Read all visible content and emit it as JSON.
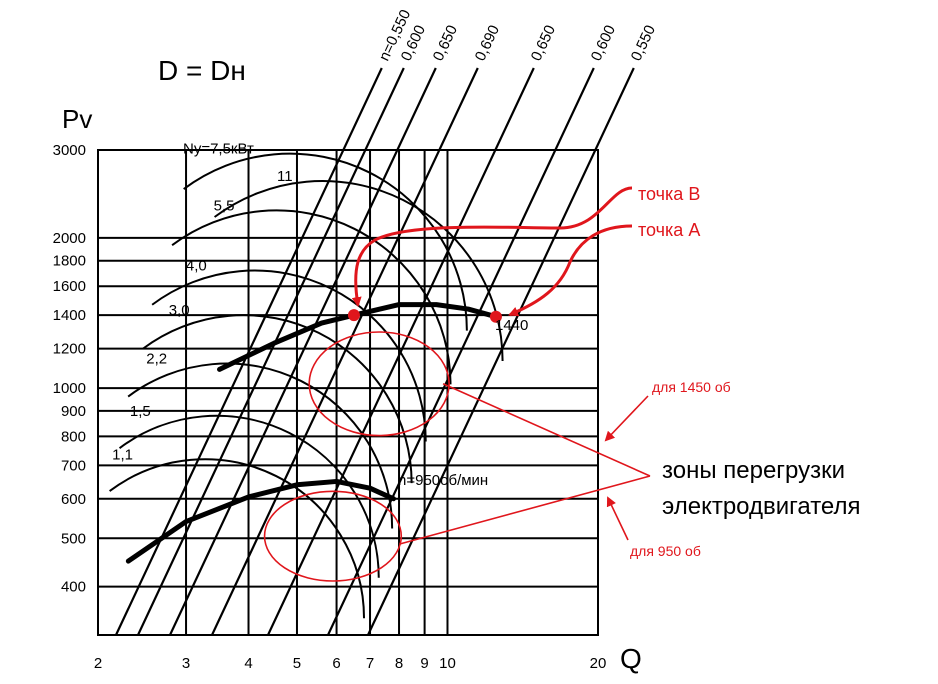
{
  "chart_data": {
    "type": "line",
    "title": "D = Dн",
    "xlabel": "Q",
    "ylabel": "Pv",
    "x_scale": "log",
    "y_scale": "log",
    "xlim": [
      2,
      20
    ],
    "ylim": [
      320,
      3000
    ],
    "x_ticks": [
      2,
      3,
      4,
      5,
      6,
      7,
      8,
      9,
      10,
      20
    ],
    "y_ticks": [
      400,
      500,
      600,
      700,
      800,
      900,
      1000,
      1200,
      1400,
      1600,
      1800,
      2000,
      3000
    ],
    "efficiency_labels": [
      "n=0,550",
      "0,600",
      "0,650",
      "0,690",
      "0,650",
      "0,600",
      "0,550"
    ],
    "power_labels": [
      {
        "text": "11",
        "x": 4.9,
        "y": 2600
      },
      {
        "text": "Ny=7,5кВт",
        "x": 4.1,
        "y": 2950
      },
      {
        "text": "5,5",
        "x": 3.75,
        "y": 2270
      },
      {
        "text": "4,0",
        "x": 3.3,
        "y": 1720
      },
      {
        "text": "3,0",
        "x": 3.05,
        "y": 1400
      },
      {
        "text": "2,2",
        "x": 2.75,
        "y": 1120
      },
      {
        "text": "1,5",
        "x": 2.55,
        "y": 880
      },
      {
        "text": "1,1",
        "x": 2.35,
        "y": 720
      }
    ],
    "series": [
      {
        "name": "1440",
        "points": [
          [
            3.5,
            1090
          ],
          [
            4.5,
            1230
          ],
          [
            5.6,
            1350
          ],
          [
            6.5,
            1400
          ],
          [
            8.0,
            1470
          ],
          [
            9.5,
            1470
          ],
          [
            11.0,
            1440
          ],
          [
            12.5,
            1390
          ]
        ]
      },
      {
        "name": "n=950об/мин",
        "points": [
          [
            2.3,
            450
          ],
          [
            3.0,
            540
          ],
          [
            4.0,
            605
          ],
          [
            5.0,
            640
          ],
          [
            6.0,
            650
          ],
          [
            7.0,
            630
          ],
          [
            7.8,
            600
          ]
        ]
      }
    ],
    "points": [
      {
        "name": "точка В",
        "x": 6.5,
        "y": 1400
      },
      {
        "name": "точка А",
        "x": 12.5,
        "y": 1390
      }
    ],
    "annotations": {
      "point_b": "точка В",
      "point_a": "точка А",
      "zone_1450": "для 1450 об",
      "zone_950": "для 950 об",
      "overload_line1": "зоны перегрузки",
      "overload_line2": "электродвигателя"
    },
    "overload_zones": [
      {
        "cx": 7.3,
        "cy": 1020,
        "rx_factor": 1.38,
        "ry_factor": 1.27
      },
      {
        "cx": 5.9,
        "cy": 505,
        "rx_factor": 1.37,
        "ry_factor": 1.23
      }
    ],
    "colors": {
      "black": "#000000",
      "red": "#e0161c"
    }
  }
}
